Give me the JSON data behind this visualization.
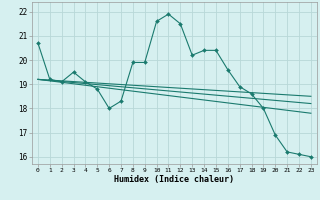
{
  "title": "",
  "xlabel": "Humidex (Indice chaleur)",
  "ylabel": "",
  "xlim": [
    -0.5,
    23.5
  ],
  "ylim": [
    15.7,
    22.4
  ],
  "yticks": [
    16,
    17,
    18,
    19,
    20,
    21,
    22
  ],
  "xticks": [
    0,
    1,
    2,
    3,
    4,
    5,
    6,
    7,
    8,
    9,
    10,
    11,
    12,
    13,
    14,
    15,
    16,
    17,
    18,
    19,
    20,
    21,
    22,
    23
  ],
  "bg_color": "#d6f0f0",
  "grid_color": "#b8d8d8",
  "line_color": "#1a7a6e",
  "series": [
    {
      "x": [
        0,
        1,
        2,
        3,
        4,
        5,
        6,
        7,
        8,
        9,
        10,
        11,
        12,
        13,
        14,
        15,
        16,
        17,
        18,
        19,
        20,
        21,
        22,
        23
      ],
      "y": [
        20.7,
        19.2,
        19.1,
        19.5,
        19.1,
        18.8,
        18.0,
        18.3,
        19.9,
        19.9,
        21.6,
        21.9,
        21.5,
        20.2,
        20.4,
        20.4,
        19.6,
        18.9,
        18.6,
        18.0,
        16.9,
        16.2,
        16.1,
        16.0
      ],
      "marker": "D",
      "markersize": 2.0
    },
    {
      "x": [
        0,
        23
      ],
      "y": [
        19.2,
        18.5
      ],
      "marker": null,
      "markersize": 0
    },
    {
      "x": [
        0,
        23
      ],
      "y": [
        19.2,
        18.2
      ],
      "marker": null,
      "markersize": 0
    },
    {
      "x": [
        0,
        23
      ],
      "y": [
        19.2,
        17.8
      ],
      "marker": null,
      "markersize": 0
    }
  ]
}
